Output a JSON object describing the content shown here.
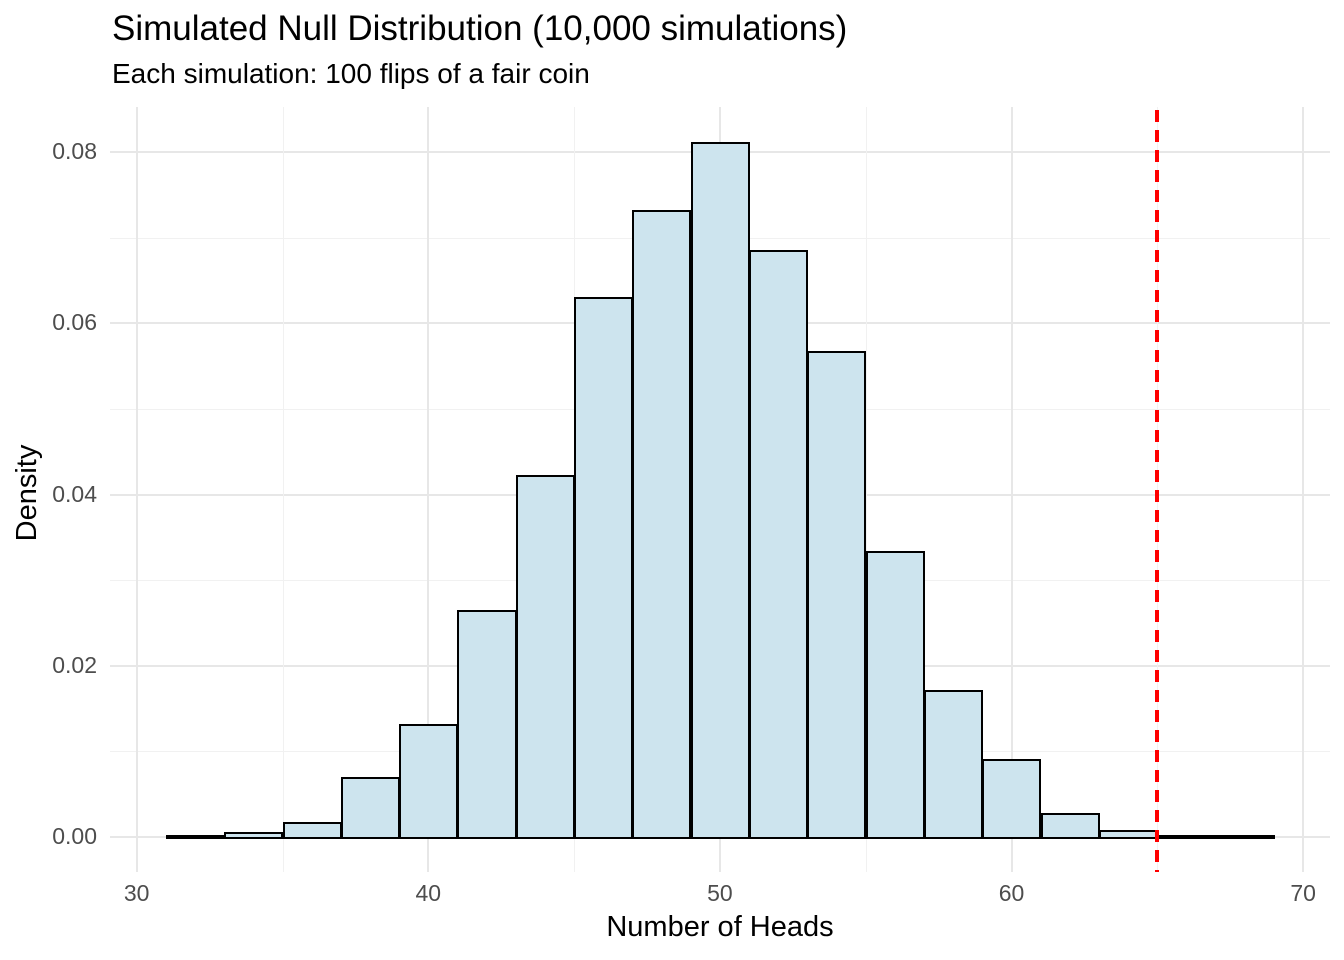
{
  "chart_data": {
    "type": "bar",
    "variant": "histogram",
    "title": "Simulated Null Distribution (10,000 simulations)",
    "subtitle": "Each simulation: 100 flips of a fair coin",
    "xlabel": "Number of Heads",
    "ylabel": "Density",
    "x_ticks": [
      {
        "v": 30,
        "label": "30"
      },
      {
        "v": 40,
        "label": "40"
      },
      {
        "v": 50,
        "label": "50"
      },
      {
        "v": 60,
        "label": "60"
      },
      {
        "v": 70,
        "label": "70"
      }
    ],
    "y_ticks": [
      {
        "v": 0.0,
        "label": "0.00"
      },
      {
        "v": 0.02,
        "label": "0.02"
      },
      {
        "v": 0.04,
        "label": "0.04"
      },
      {
        "v": 0.06,
        "label": "0.06"
      },
      {
        "v": 0.08,
        "label": "0.08"
      }
    ],
    "x_minor": [
      35,
      45,
      55,
      65
    ],
    "y_minor": [
      0.01,
      0.03,
      0.05,
      0.07
    ],
    "xlim": [
      29.1,
      70.9
    ],
    "ylim": [
      -0.004,
      0.0853
    ],
    "grid": true,
    "legend": "none",
    "bin_width": 2,
    "bins": [
      {
        "x0": 31,
        "x1": 33,
        "density": 0.0002
      },
      {
        "x0": 33,
        "x1": 35,
        "density": 0.0006
      },
      {
        "x0": 35,
        "x1": 37,
        "density": 0.0017
      },
      {
        "x0": 37,
        "x1": 39,
        "density": 0.007
      },
      {
        "x0": 39,
        "x1": 41,
        "density": 0.0132
      },
      {
        "x0": 41,
        "x1": 43,
        "density": 0.0265
      },
      {
        "x0": 43,
        "x1": 45,
        "density": 0.0423
      },
      {
        "x0": 45,
        "x1": 47,
        "density": 0.0631
      },
      {
        "x0": 47,
        "x1": 49,
        "density": 0.0732
      },
      {
        "x0": 49,
        "x1": 51,
        "density": 0.0812
      },
      {
        "x0": 51,
        "x1": 53,
        "density": 0.0686
      },
      {
        "x0": 53,
        "x1": 55,
        "density": 0.0568
      },
      {
        "x0": 55,
        "x1": 57,
        "density": 0.0334
      },
      {
        "x0": 57,
        "x1": 59,
        "density": 0.0171
      },
      {
        "x0": 59,
        "x1": 61,
        "density": 0.0091
      },
      {
        "x0": 61,
        "x1": 63,
        "density": 0.0028
      },
      {
        "x0": 63,
        "x1": 65,
        "density": 0.0008
      },
      {
        "x0": 65,
        "x1": 67,
        "density": 0.0002
      },
      {
        "x0": 67,
        "x1": 69,
        "density": 0.0001
      }
    ],
    "reference_line": {
      "x": 65,
      "style": "dashed",
      "color": "#FF0000"
    },
    "colors": {
      "background": "#FFFFFF",
      "bar_fill": "#CDE4EE",
      "bar_stroke": "#000000",
      "grid_major": "#E7E7E7",
      "grid_minor": "#F1F1F1",
      "tick_text": "#4D4D4D",
      "text": "#000000",
      "reference": "#FF0000"
    }
  }
}
